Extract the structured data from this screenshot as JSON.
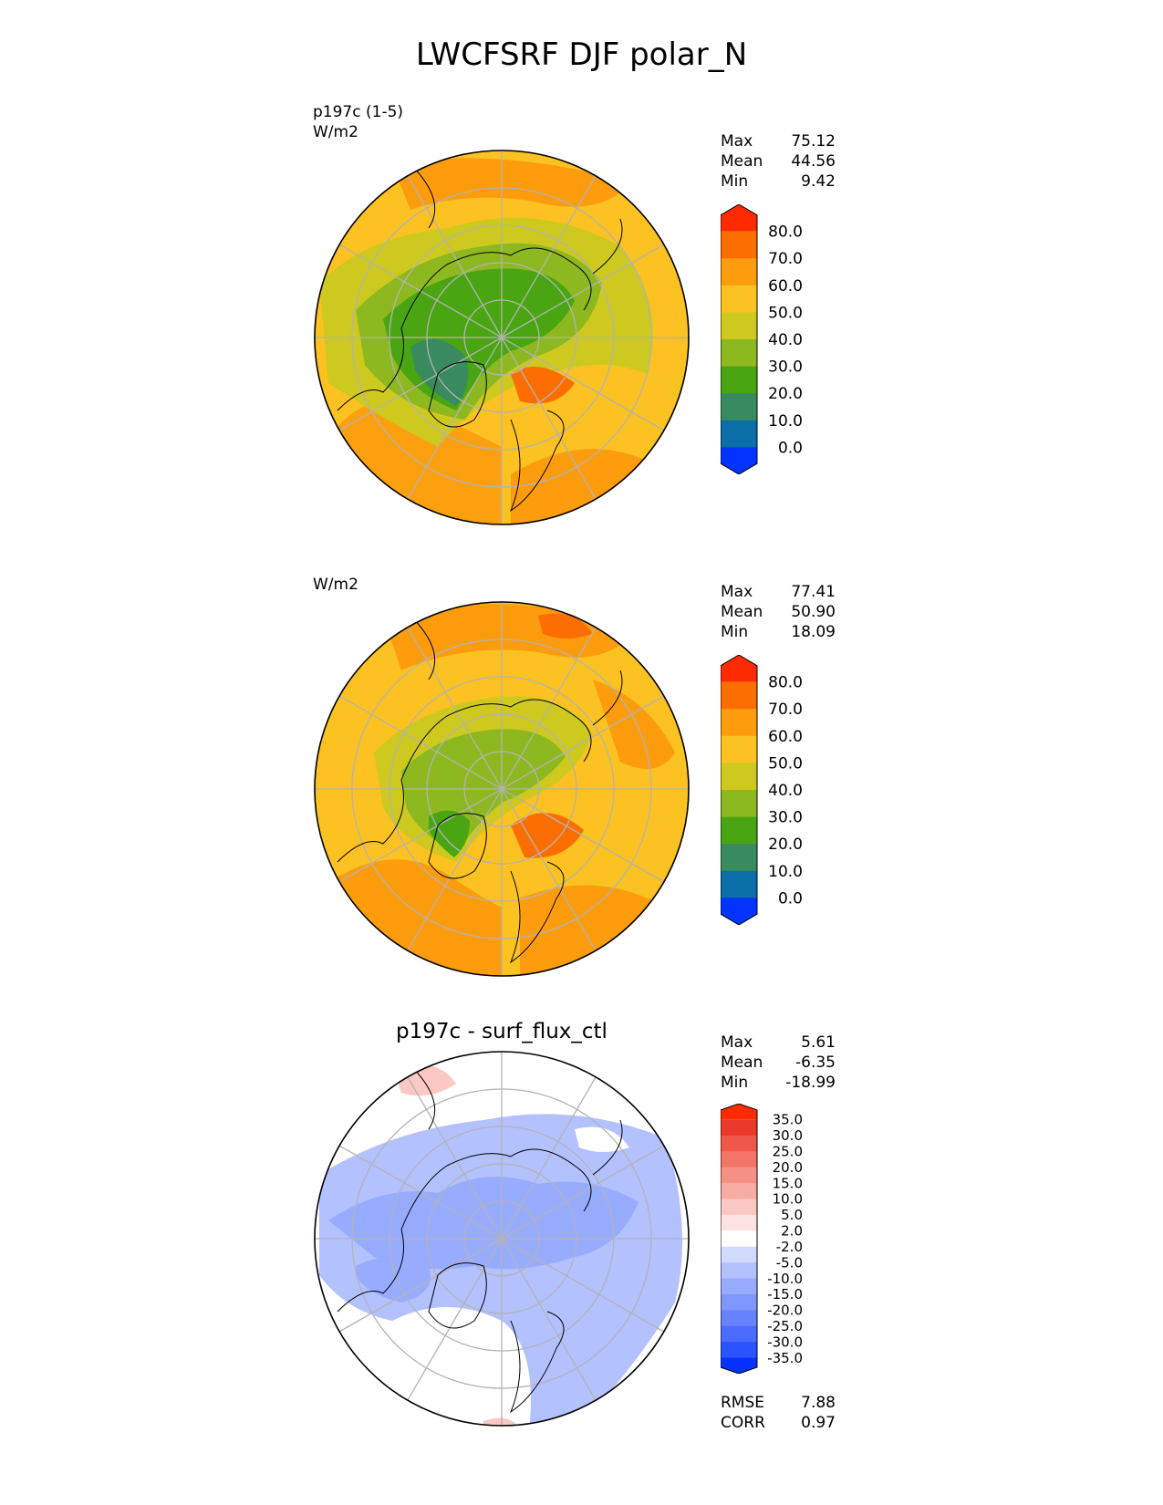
{
  "title": "LWCFSRF DJF polar_N",
  "colors": {
    "levels_abs": [
      "#0433ff",
      "#0a6ea8",
      "#3a8a5f",
      "#4aa512",
      "#8db81f",
      "#cdc91f",
      "#fcc221",
      "#fd9c0d",
      "#fd6e02",
      "#ff2b00"
    ],
    "levels_diff": [
      "#0531ff",
      "#2a52ff",
      "#4b6bff",
      "#6682ff",
      "#7f97ff",
      "#98acff",
      "#b3c1ff",
      "#d2dbff",
      "#ffffff",
      "#fde3e1",
      "#fbc8c3",
      "#f9aca4",
      "#f69186",
      "#f27567",
      "#ee5749",
      "#eb392c",
      "#ff2b00"
    ],
    "coast": "#000000",
    "grid": "#b3b3b3"
  },
  "panels": [
    {
      "subtitle": "",
      "left_text": "p197c (1-5)\nW/m2",
      "stats": {
        "max_label": "Max",
        "max": "75.12",
        "mean_label": "Mean",
        "mean": "44.56",
        "min_label": "Min",
        "min": "9.42"
      },
      "colorbar_ticks": [
        "80.0",
        "70.0",
        "60.0",
        "50.0",
        "40.0",
        "30.0",
        "20.0",
        "10.0",
        "0.0"
      ]
    },
    {
      "subtitle": "",
      "left_text": "W/m2",
      "stats": {
        "max_label": "Max",
        "max": "77.41",
        "mean_label": "Mean",
        "mean": "50.90",
        "min_label": "Min",
        "min": "18.09"
      },
      "colorbar_ticks": [
        "80.0",
        "70.0",
        "60.0",
        "50.0",
        "40.0",
        "30.0",
        "20.0",
        "10.0",
        "0.0"
      ]
    },
    {
      "subtitle": "p197c - surf_flux_ctl",
      "left_text": "",
      "stats": {
        "max_label": "Max",
        "max": "5.61",
        "mean_label": "Mean",
        "mean": "-6.35",
        "min_label": "Min",
        "min": "-18.99"
      },
      "colorbar_ticks": [
        "35.0",
        "30.0",
        "25.0",
        "20.0",
        "15.0",
        "10.0",
        "5.0",
        "2.0",
        "-2.0",
        "-5.0",
        "-10.0",
        "-15.0",
        "-20.0",
        "-25.0",
        "-30.0",
        "-35.0"
      ],
      "metrics": {
        "rmse_label": "RMSE",
        "rmse": "7.88",
        "corr_label": "CORR",
        "corr": "0.97"
      }
    }
  ],
  "chart_data": [
    {
      "type": "heatmap",
      "projection": "north polar stereographic",
      "title": "p197c (1-5)",
      "units": "W/m2",
      "colorbar_levels": [
        0,
        10,
        20,
        30,
        40,
        50,
        60,
        70,
        80
      ],
      "extend": "both",
      "max": 75.12,
      "mean": 44.56,
      "min": 9.42
    },
    {
      "type": "heatmap",
      "projection": "north polar stereographic",
      "title": "",
      "units": "W/m2",
      "colorbar_levels": [
        0,
        10,
        20,
        30,
        40,
        50,
        60,
        70,
        80
      ],
      "extend": "both",
      "max": 77.41,
      "mean": 50.9,
      "min": 18.09
    },
    {
      "type": "heatmap",
      "projection": "north polar stereographic",
      "title": "p197c - surf_flux_ctl",
      "colorbar_levels": [
        -35,
        -30,
        -25,
        -20,
        -15,
        -10,
        -5,
        -2,
        2,
        5,
        10,
        15,
        20,
        25,
        30,
        35
      ],
      "extend": "both",
      "max": 5.61,
      "mean": -6.35,
      "min": -18.99,
      "rmse": 7.88,
      "corr": 0.97
    }
  ]
}
